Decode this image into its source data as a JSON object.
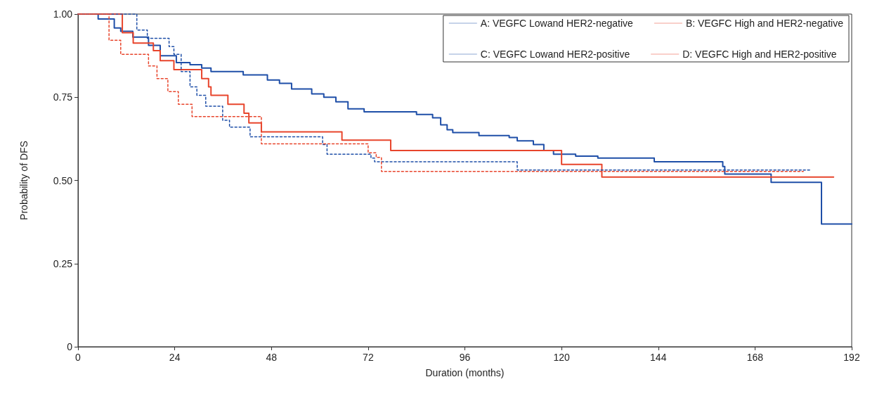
{
  "chart_data": {
    "type": "step",
    "xlabel": "Duration (months)",
    "ylabel": "Probability of DFS",
    "xlim": [
      0,
      192
    ],
    "xticks": [
      0,
      24,
      48,
      72,
      96,
      120,
      144,
      168,
      192
    ],
    "ylim": [
      0,
      1
    ],
    "yticks": [
      0,
      {
        "value": 0.25,
        "label": "0.25"
      },
      {
        "value": 0.5,
        "label": "0.50"
      },
      {
        "value": 0.75,
        "label": "0.75"
      },
      {
        "value": 1,
        "label": "1.00"
      }
    ],
    "grid": false,
    "legend": "top right",
    "marker": "none",
    "series": [
      {
        "name": "A: VEGFC Lowand HER2-negative",
        "color": "#1f4fa8",
        "line_style": "solid",
        "x": [
          0,
          5,
          9,
          10.6,
          13.6,
          17.5,
          20.4,
          24.4,
          27.8,
          30.7,
          33,
          41,
          47,
          50,
          53,
          58,
          61,
          64,
          67,
          71,
          84,
          88,
          90,
          91.6,
          93,
          99.5,
          107,
          109,
          113,
          115.6,
          118,
          123.5,
          129,
          143,
          160,
          160.5,
          172,
          184.5,
          192
        ],
        "values": [
          1,
          0.985,
          0.958,
          0.948,
          0.931,
          0.906,
          0.875,
          0.854,
          0.848,
          0.838,
          0.827,
          0.817,
          0.802,
          0.792,
          0.775,
          0.76,
          0.75,
          0.736,
          0.715,
          0.706,
          0.698,
          0.688,
          0.667,
          0.652,
          0.644,
          0.635,
          0.629,
          0.619,
          0.608,
          0.59,
          0.579,
          0.573,
          0.567,
          0.556,
          0.542,
          0.519,
          0.494,
          0.369,
          0.369
        ]
      },
      {
        "name": "B: VEGFC High and HER2-negative",
        "color": "#e8452c",
        "line_style": "solid",
        "x": [
          0,
          11,
          13.7,
          18.7,
          20.4,
          23.8,
          30.7,
          32.4,
          33,
          37.2,
          41.2,
          42.4,
          45.5,
          65.5,
          77.6,
          120,
          130,
          187.5
        ],
        "values": [
          1,
          0.944,
          0.913,
          0.89,
          0.86,
          0.833,
          0.806,
          0.781,
          0.756,
          0.729,
          0.702,
          0.673,
          0.646,
          0.621,
          0.59,
          0.548,
          0.51,
          0.51
        ]
      },
      {
        "name": "C: VEGFC Lowand HER2-positive",
        "color": "#1f4fa8",
        "line_style": "dotted",
        "x": [
          0,
          14.6,
          17.2,
          22.6,
          23.8,
          25.6,
          27.8,
          29.5,
          31.7,
          35.9,
          37.6,
          42.7,
          60.7,
          61.8,
          72.7,
          73.6,
          109,
          182
        ],
        "values": [
          1,
          0.952,
          0.927,
          0.902,
          0.879,
          0.827,
          0.781,
          0.756,
          0.723,
          0.681,
          0.66,
          0.631,
          0.608,
          0.579,
          0.567,
          0.556,
          0.531,
          0.531
        ]
      },
      {
        "name": "D: VEGFC High and HER2-positive",
        "color": "#e8452c",
        "line_style": "dotted",
        "x": [
          0,
          7.7,
          10.6,
          17.5,
          19.6,
          22.3,
          24.9,
          28.3,
          45.5,
          72,
          74,
          75.3,
          180
        ],
        "values": [
          1,
          0.921,
          0.879,
          0.844,
          0.806,
          0.767,
          0.729,
          0.692,
          0.61,
          0.583,
          0.569,
          0.527,
          0.527
        ]
      }
    ]
  }
}
